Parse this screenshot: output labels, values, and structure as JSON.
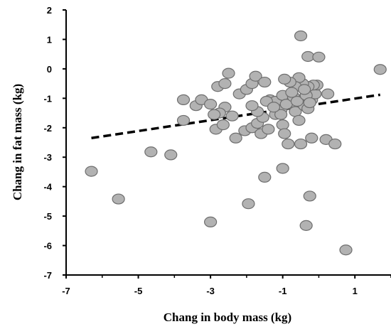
{
  "chart_data": {
    "type": "scatter",
    "title": "",
    "xlabel": "Chang in body mass (kg)",
    "ylabel": "Chang in fat mass (kg)",
    "xlim": [
      -7,
      2
    ],
    "ylim": [
      -7,
      2
    ],
    "x_ticks": [
      -7,
      -5,
      -3,
      -1,
      1
    ],
    "y_ticks": [
      2,
      1,
      0,
      -1,
      -2,
      -3,
      -4,
      -5,
      -6,
      -7
    ],
    "grid": false,
    "legend": "none",
    "marker_fill": "#b2b2b2",
    "marker_stroke": "#6e6e6e",
    "trendline": {
      "style": "dashed",
      "color": "#000000",
      "x": [
        -6.3,
        1.7
      ],
      "y": [
        -2.35,
        -0.88
      ]
    },
    "points": [
      [
        -6.3,
        -3.48
      ],
      [
        -5.55,
        -4.42
      ],
      [
        -4.65,
        -2.82
      ],
      [
        -4.1,
        -2.92
      ],
      [
        -3.0,
        -5.2
      ],
      [
        -1.95,
        -4.58
      ],
      [
        -1.5,
        -3.68
      ],
      [
        -1.0,
        -3.38
      ],
      [
        -0.35,
        -5.32
      ],
      [
        0.75,
        -6.15
      ],
      [
        -0.25,
        -4.32
      ],
      [
        1.7,
        -0.02
      ],
      [
        -0.5,
        1.12
      ],
      [
        -0.3,
        0.42
      ],
      [
        0.0,
        0.4
      ],
      [
        -3.4,
        -1.25
      ],
      [
        -3.75,
        -1.75
      ],
      [
        -3.25,
        -1.05
      ],
      [
        -3.75,
        -1.05
      ],
      [
        -2.5,
        -0.15
      ],
      [
        -2.2,
        -0.85
      ],
      [
        -2.8,
        -0.6
      ],
      [
        -2.6,
        -0.5
      ],
      [
        -2.6,
        -1.3
      ],
      [
        -2.75,
        -1.5
      ],
      [
        -2.9,
        -1.55
      ],
      [
        -3.0,
        -1.2
      ],
      [
        -2.85,
        -2.05
      ],
      [
        -2.65,
        -1.9
      ],
      [
        -2.4,
        -1.6
      ],
      [
        -2.3,
        -2.35
      ],
      [
        -2.05,
        -2.1
      ],
      [
        -1.85,
        -2.0
      ],
      [
        -1.7,
        -1.85
      ],
      [
        -1.6,
        -2.2
      ],
      [
        -1.55,
        -1.65
      ],
      [
        -1.7,
        -1.45
      ],
      [
        -1.85,
        -1.25
      ],
      [
        -2.0,
        -0.7
      ],
      [
        -1.85,
        -0.5
      ],
      [
        -1.75,
        -0.25
      ],
      [
        -1.5,
        -0.45
      ],
      [
        -1.35,
        -1.05
      ],
      [
        -1.2,
        -1.1
      ],
      [
        -1.4,
        -2.05
      ],
      [
        -1.2,
        -1.55
      ],
      [
        -1.05,
        -1.4
      ],
      [
        -1.0,
        -1.9
      ],
      [
        -0.95,
        -2.2
      ],
      [
        -0.85,
        -2.55
      ],
      [
        -0.85,
        -1.0
      ],
      [
        -0.75,
        -1.2
      ],
      [
        -0.65,
        -1.45
      ],
      [
        -0.55,
        -1.75
      ],
      [
        -0.5,
        -1.05
      ],
      [
        -0.4,
        -1.25
      ],
      [
        -0.3,
        -1.35
      ],
      [
        -0.2,
        -1.05
      ],
      [
        -0.1,
        -0.85
      ],
      [
        -0.05,
        -0.55
      ],
      [
        -0.15,
        -0.55
      ],
      [
        -0.3,
        -0.6
      ],
      [
        -0.45,
        -0.5
      ],
      [
        -0.55,
        -0.3
      ],
      [
        -0.65,
        -0.6
      ],
      [
        -0.8,
        -0.45
      ],
      [
        -0.95,
        -0.35
      ],
      [
        -1.0,
        -0.9
      ],
      [
        -0.9,
        -1.2
      ],
      [
        -0.7,
        -0.95
      ],
      [
        -0.6,
        -1.1
      ],
      [
        -0.35,
        -0.9
      ],
      [
        -0.25,
        -1.15
      ],
      [
        -0.5,
        -2.55
      ],
      [
        -0.2,
        -2.35
      ],
      [
        0.2,
        -2.4
      ],
      [
        0.45,
        -2.55
      ],
      [
        0.25,
        -0.85
      ],
      [
        -1.05,
        -1.55
      ],
      [
        -1.45,
        -1.1
      ],
      [
        -1.25,
        -1.3
      ],
      [
        -0.75,
        -0.8
      ],
      [
        -0.4,
        -0.7
      ]
    ]
  }
}
